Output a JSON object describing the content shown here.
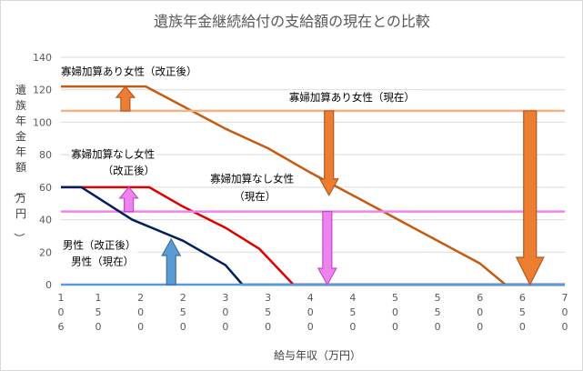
{
  "chart_data": {
    "type": "line",
    "title": "遺族年金継続給付の支給額の現在との比較",
    "xlabel": "給与年収（万円）",
    "ylabel": "遺族年金年額（万円）",
    "ylim": [
      0,
      140
    ],
    "y_ticks": [
      0,
      20,
      40,
      60,
      80,
      100,
      120,
      140
    ],
    "xlim": [
      106,
      700
    ],
    "x_tick_values": [
      106,
      150,
      200,
      250,
      300,
      350,
      400,
      450,
      500,
      550,
      600,
      650,
      700
    ],
    "x_tick_labels": [
      "106",
      "150",
      "200",
      "250",
      "300",
      "350",
      "400",
      "450",
      "500",
      "550",
      "600",
      "650",
      "700"
    ],
    "grid": "horizontal",
    "legend": "none",
    "series": [
      {
        "name": "寡婦加算あり女性（改正後）",
        "color": "#c55a11",
        "x": [
          106,
          206,
          300,
          350,
          400,
          450,
          500,
          550,
          600,
          630,
          700
        ],
        "y": [
          122,
          122,
          96,
          84,
          69,
          55,
          41,
          27,
          13,
          0,
          0
        ]
      },
      {
        "name": "寡婦加算あり女性（現在）",
        "color": "#f4b183",
        "x": [
          106,
          700
        ],
        "y": [
          107,
          107
        ]
      },
      {
        "name": "寡婦加算なし女性（改正後）",
        "color": "#e00000",
        "x": [
          106,
          210,
          250,
          300,
          340,
          380,
          700
        ],
        "y": [
          60,
          60,
          48,
          35,
          22,
          0,
          0
        ]
      },
      {
        "name": "寡婦加算なし女性（現在）",
        "color": "#ee82ee",
        "x": [
          106,
          700
        ],
        "y": [
          45,
          45
        ]
      },
      {
        "name": "男性（改正後）",
        "color": "#002060",
        "x": [
          106,
          130,
          190,
          250,
          300,
          320,
          700
        ],
        "y": [
          60,
          60,
          40,
          27,
          12,
          0,
          0
        ]
      },
      {
        "name": "男性（現在）",
        "color": "#5b9bd5",
        "x": [
          106,
          700
        ],
        "y": [
          0,
          0
        ]
      }
    ],
    "annotations": [
      {
        "text": "寡婦加算あり女性（改正後）",
        "x": 106,
        "y": 129
      },
      {
        "text": "寡婦加算あり女性（現在）",
        "x": 375,
        "y": 113
      },
      {
        "text": "寡婦加算なし女性",
        "x": 118,
        "y": 78
      },
      {
        "text": "（改正後）",
        "x": 155,
        "y": 68
      },
      {
        "text": "寡婦加算なし女性",
        "x": 282,
        "y": 63
      },
      {
        "text": "（現在）",
        "x": 310,
        "y": 52
      },
      {
        "text": "男性（改正後）",
        "x": 108,
        "y": 22
      },
      {
        "text": "男性（現在）",
        "x": 118,
        "y": 12
      }
    ],
    "arrows": [
      {
        "direction": "up",
        "x": 182,
        "y_from": 107,
        "y_to": 122,
        "color": "#ed7d31"
      },
      {
        "direction": "up",
        "x": 186,
        "y_from": 45,
        "y_to": 60,
        "color": "#ee82ee"
      },
      {
        "direction": "up",
        "x": 236,
        "y_from": 0,
        "y_to": 28,
        "color": "#5b9bd5"
      },
      {
        "direction": "down",
        "x": 422,
        "y_from": 107,
        "y_to": 55,
        "color": "#ed7d31"
      },
      {
        "direction": "down",
        "x": 420,
        "y_from": 45,
        "y_to": 0,
        "color": "#ee82ee"
      },
      {
        "direction": "down",
        "x": 659,
        "y_from": 107,
        "y_to": 0,
        "color": "#ed7d31"
      }
    ]
  }
}
